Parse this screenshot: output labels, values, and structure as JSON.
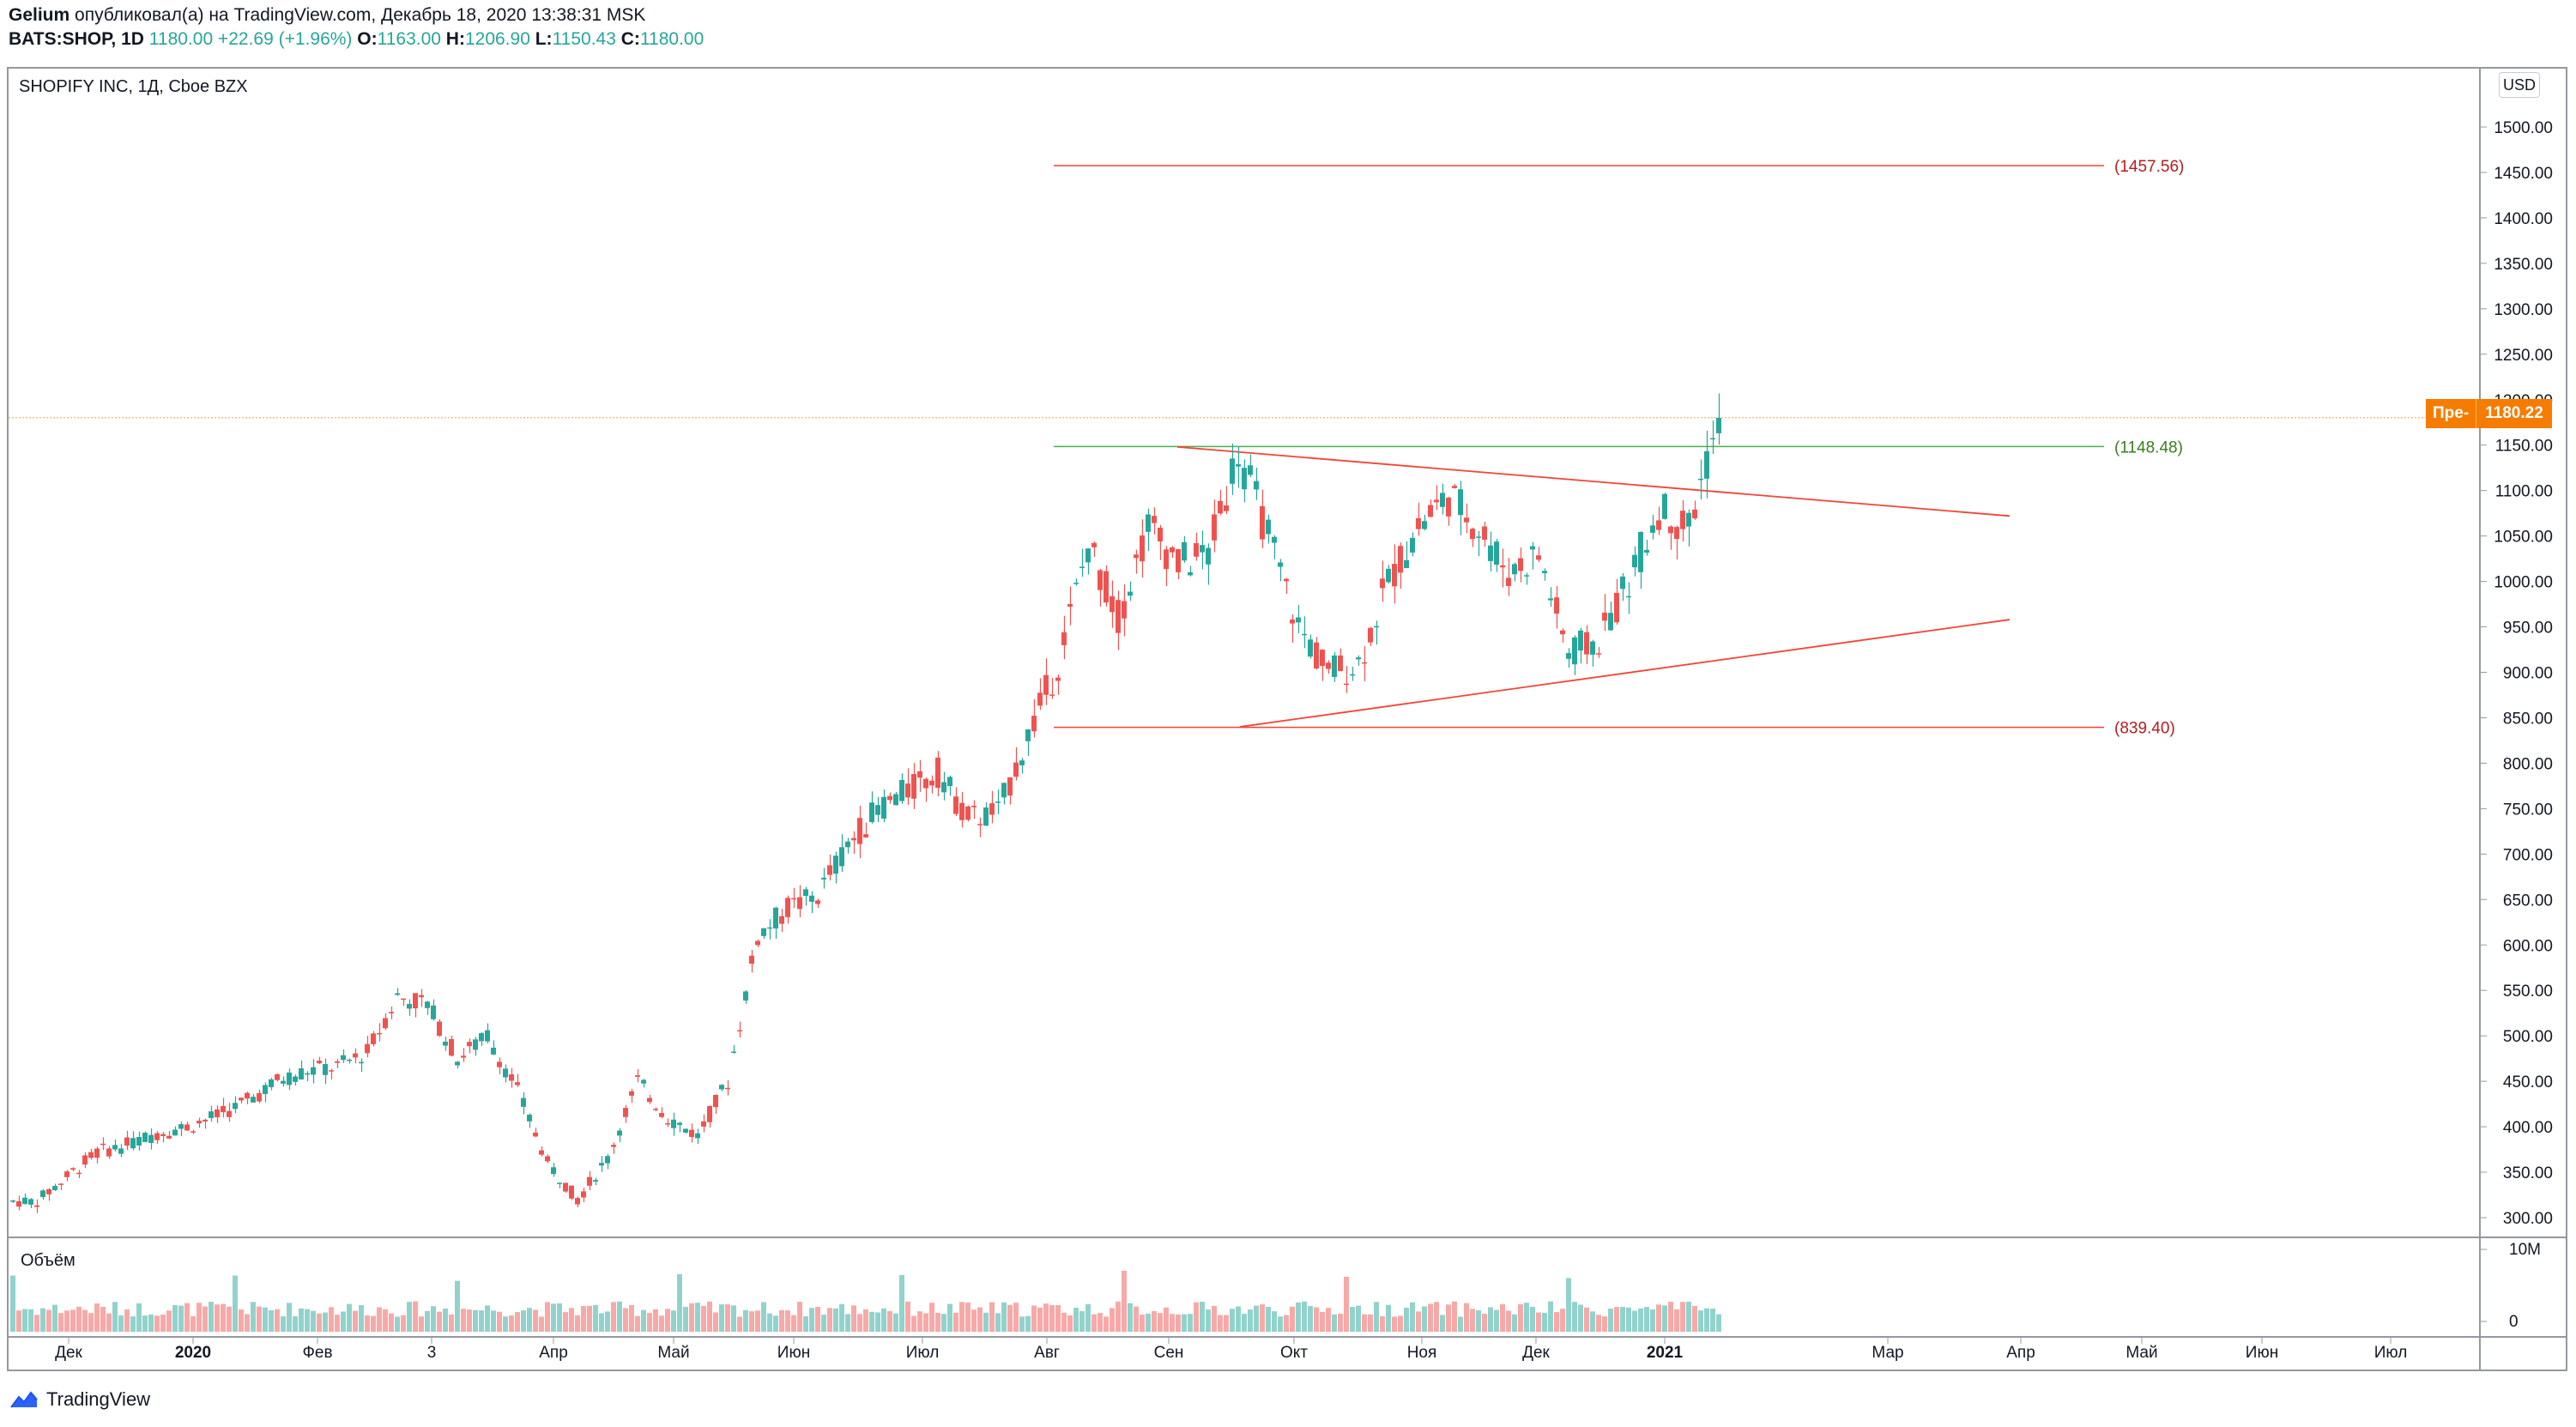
{
  "header": {
    "line1": {
      "author": "Gelium",
      "rest": " опубликовал(а) на TradingView.com, Декабрь 18, 2020 13:38:31 MSK"
    },
    "line2": {
      "symbol": "BATS:SHOP, 1D",
      "price": "1180.00",
      "change": "+22.69 (+1.96%)",
      "o_label": "O:",
      "o": "1163.00",
      "h_label": "H:",
      "h": "1206.90",
      "l_label": "L:",
      "l": "1150.43",
      "c_label": "C:",
      "c": "1180.00"
    }
  },
  "pane": {
    "symbol_title": "SHOPIFY INC, 1Д, Cboe BZX",
    "volume_title": "Объём"
  },
  "scale": {
    "currency": "USD",
    "last_prefix": "Пре-",
    "last_price": "1180.22",
    "price_ticks": [
      "1500.00",
      "1450.00",
      "1400.00",
      "1350.00",
      "1300.00",
      "1250.00",
      "1200.00",
      "1150.00",
      "1100.00",
      "1050.00",
      "1000.00",
      "950.00",
      "900.00",
      "850.00",
      "800.00",
      "750.00",
      "700.00",
      "650.00",
      "600.00",
      "550.00",
      "500.00",
      "450.00",
      "400.00",
      "350.00",
      "300.00"
    ],
    "volume_ticks": [
      "10M",
      "0"
    ]
  },
  "time_axis": [
    "Дек",
    "2020",
    "Фев",
    "3",
    "Апр",
    "Май",
    "Июн",
    "Июл",
    "Авг",
    "Сен",
    "Окт",
    "Ноя",
    "Дек",
    "2021",
    "Мар",
    "Апр",
    "Май",
    "Июн",
    "Июл"
  ],
  "annotations": {
    "high_level": "(1457.56)",
    "resistance": "(1148.48)",
    "support": "(839.40)"
  },
  "footer": {
    "brand": "TradingView"
  },
  "colors": {
    "up": "#26a69a",
    "down": "#ef5350",
    "line_red": "#f44336",
    "line_green": "#4caf50",
    "accent": "#f57c00"
  },
  "chart_data": {
    "type": "candlestick",
    "title": "SHOPIFY INC, 1Д, Cboe BZX",
    "ylim": [
      270,
      1540
    ],
    "x_start": "2019-11-18",
    "x_end": "2020-12-18",
    "levels": [
      {
        "label": "(1457.56)",
        "value": 1457.56,
        "x1": "2020-07-27",
        "x2": "2021-01-25"
      },
      {
        "label": "(1148.48)",
        "value": 1148.48,
        "x1": "2020-07-27",
        "x2": "2021-01-25"
      },
      {
        "label": "(839.40)",
        "value": 839.4,
        "x1": "2020-07-27",
        "x2": "2021-01-25"
      }
    ],
    "trendlines": [
      {
        "from": [
          "2020-08-28",
          1148
        ],
        "to": [
          "2021-01-18",
          1072
        ]
      },
      {
        "from": [
          "2020-09-21",
          840
        ],
        "to": [
          "2021-01-18",
          958
        ]
      }
    ],
    "closes_weekly": [
      {
        "date": "2019-11-18",
        "close": 318
      },
      {
        "date": "2019-11-25",
        "close": 345
      },
      {
        "date": "2019-12-02",
        "close": 372
      },
      {
        "date": "2019-12-09",
        "close": 380
      },
      {
        "date": "2019-12-16",
        "close": 393
      },
      {
        "date": "2019-12-23",
        "close": 400
      },
      {
        "date": "2019-12-30",
        "close": 412
      },
      {
        "date": "2020-01-06",
        "close": 428
      },
      {
        "date": "2020-01-13",
        "close": 450
      },
      {
        "date": "2020-01-20",
        "close": 462
      },
      {
        "date": "2020-01-27",
        "close": 466
      },
      {
        "date": "2020-02-03",
        "close": 482
      },
      {
        "date": "2020-02-10",
        "close": 543
      },
      {
        "date": "2020-02-17",
        "close": 535
      },
      {
        "date": "2020-02-24",
        "close": 475
      },
      {
        "date": "2020-03-02",
        "close": 500
      },
      {
        "date": "2020-03-09",
        "close": 440
      },
      {
        "date": "2020-03-16",
        "close": 360
      },
      {
        "date": "2020-03-23",
        "close": 320
      },
      {
        "date": "2020-03-30",
        "close": 365
      },
      {
        "date": "2020-04-06",
        "close": 450
      },
      {
        "date": "2020-04-13",
        "close": 410
      },
      {
        "date": "2020-04-20",
        "close": 390
      },
      {
        "date": "2020-04-27",
        "close": 450
      },
      {
        "date": "2020-05-04",
        "close": 610
      },
      {
        "date": "2020-05-11",
        "close": 640
      },
      {
        "date": "2020-05-18",
        "close": 655
      },
      {
        "date": "2020-05-25",
        "close": 710
      },
      {
        "date": "2020-06-01",
        "close": 750
      },
      {
        "date": "2020-06-08",
        "close": 770
      },
      {
        "date": "2020-06-15",
        "close": 790
      },
      {
        "date": "2020-06-22",
        "close": 740
      },
      {
        "date": "2020-06-29",
        "close": 745
      },
      {
        "date": "2020-07-06",
        "close": 830
      },
      {
        "date": "2020-07-13",
        "close": 910
      },
      {
        "date": "2020-07-20",
        "close": 1040
      },
      {
        "date": "2020-07-27",
        "close": 960
      },
      {
        "date": "2020-08-03",
        "close": 1060
      },
      {
        "date": "2020-08-10",
        "close": 1020
      },
      {
        "date": "2020-08-17",
        "close": 1030
      },
      {
        "date": "2020-08-24",
        "close": 1145
      },
      {
        "date": "2020-08-31",
        "close": 1050
      },
      {
        "date": "2020-09-07",
        "close": 950
      },
      {
        "date": "2020-09-14",
        "close": 900
      },
      {
        "date": "2020-09-21",
        "close": 910
      },
      {
        "date": "2020-09-28",
        "close": 1000
      },
      {
        "date": "2020-10-05",
        "close": 1060
      },
      {
        "date": "2020-10-12",
        "close": 1095
      },
      {
        "date": "2020-10-19",
        "close": 1060
      },
      {
        "date": "2020-10-26",
        "close": 1010
      },
      {
        "date": "2020-11-02",
        "close": 1030
      },
      {
        "date": "2020-11-09",
        "close": 920
      },
      {
        "date": "2020-11-16",
        "close": 935
      },
      {
        "date": "2020-11-23",
        "close": 1000
      },
      {
        "date": "2020-11-30",
        "close": 1080
      },
      {
        "date": "2020-12-07",
        "close": 1060
      },
      {
        "date": "2020-12-14",
        "close": 1180
      }
    ]
  }
}
